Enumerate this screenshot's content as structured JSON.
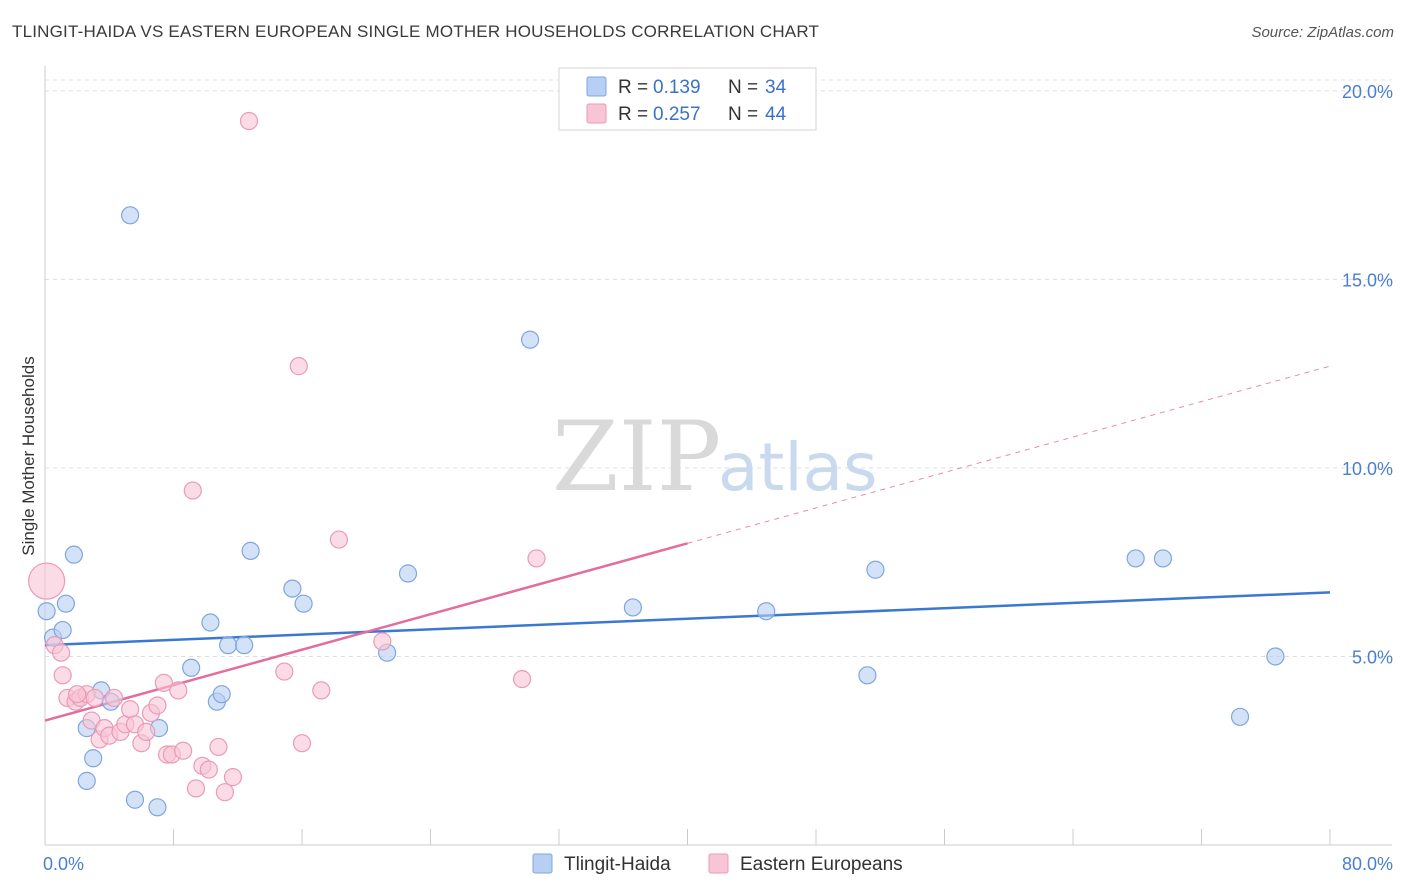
{
  "header": {
    "title": "TLINGIT-HAIDA VS EASTERN EUROPEAN SINGLE MOTHER HOUSEHOLDS CORRELATION CHART",
    "source": "Source: ZipAtlas.com"
  },
  "watermark": {
    "zip": "ZIP",
    "atlas": "atlas"
  },
  "legend": {
    "r_label": "R =",
    "n_label": "N =",
    "rows": [
      {
        "r": "0.139",
        "n": "34"
      },
      {
        "r": "0.257",
        "n": "44"
      }
    ]
  },
  "chart_data": {
    "type": "scatter",
    "title": "TLINGIT-HAIDA VS EASTERN EUROPEAN SINGLE MOTHER HOUSEHOLDS CORRELATION CHART",
    "xlabel": "",
    "ylabel": "Single Mother Households",
    "xlim": [
      0,
      80
    ],
    "ylim": [
      0,
      20.5
    ],
    "x_tick_labels": [
      "0.0%",
      "80.0%"
    ],
    "y_ticks": [
      5,
      10,
      15,
      20
    ],
    "y_tick_labels": [
      "5.0%",
      "10.0%",
      "15.0%",
      "20.0%"
    ],
    "grid": true,
    "colors": {
      "blue": "#3a78d4",
      "blue_fill": "#b7cff2",
      "pink": "#e36d9c",
      "pink_fill": "#f8c5d6"
    },
    "series": [
      {
        "name": "Tlingit-Haida",
        "r": 0.139,
        "n": 34,
        "trend": {
          "x0": 0,
          "y0": 5.3,
          "x1": 80,
          "y1": 6.7,
          "dash_from": null
        },
        "points": [
          [
            0.1,
            6.2
          ],
          [
            0.5,
            5.5
          ],
          [
            1.1,
            5.7
          ],
          [
            1.3,
            6.4
          ],
          [
            1.8,
            7.7
          ],
          [
            2.6,
            1.7
          ],
          [
            2.6,
            3.1
          ],
          [
            3.0,
            2.3
          ],
          [
            3.5,
            4.1
          ],
          [
            4.1,
            3.8
          ],
          [
            5.3,
            16.7
          ],
          [
            5.6,
            1.2
          ],
          [
            7.0,
            1.0
          ],
          [
            7.1,
            3.1
          ],
          [
            9.1,
            4.7
          ],
          [
            10.3,
            5.9
          ],
          [
            10.7,
            3.8
          ],
          [
            11.0,
            4.0
          ],
          [
            11.4,
            5.3
          ],
          [
            12.4,
            5.3
          ],
          [
            12.8,
            7.8
          ],
          [
            15.4,
            6.8
          ],
          [
            16.1,
            6.4
          ],
          [
            21.3,
            5.1
          ],
          [
            22.6,
            7.2
          ],
          [
            30.2,
            13.4
          ],
          [
            36.6,
            6.3
          ],
          [
            44.9,
            6.2
          ],
          [
            51.2,
            4.5
          ],
          [
            51.7,
            7.3
          ],
          [
            67.9,
            7.6
          ],
          [
            69.6,
            7.6
          ],
          [
            74.4,
            3.4
          ],
          [
            76.6,
            5.0
          ]
        ]
      },
      {
        "name": "Eastern Europeans",
        "r": 0.257,
        "n": 44,
        "trend": {
          "x0": 0,
          "y0": 3.3,
          "x1": 80,
          "y1": 12.7,
          "dash_from": 40
        },
        "points": [
          [
            0.1,
            7.0
          ],
          [
            0.6,
            5.3
          ],
          [
            1.1,
            4.5
          ],
          [
            1.4,
            3.9
          ],
          [
            1.9,
            3.8
          ],
          [
            2.2,
            3.9
          ],
          [
            2.6,
            4.0
          ],
          [
            2.9,
            3.3
          ],
          [
            3.1,
            3.9
          ],
          [
            3.4,
            2.8
          ],
          [
            3.7,
            3.1
          ],
          [
            4.0,
            2.9
          ],
          [
            4.3,
            3.9
          ],
          [
            4.7,
            3.0
          ],
          [
            5.0,
            3.2
          ],
          [
            5.3,
            3.6
          ],
          [
            5.6,
            3.2
          ],
          [
            6.0,
            2.7
          ],
          [
            6.3,
            3.0
          ],
          [
            6.6,
            3.5
          ],
          [
            7.0,
            3.7
          ],
          [
            7.4,
            4.3
          ],
          [
            7.6,
            2.4
          ],
          [
            7.9,
            2.4
          ],
          [
            8.3,
            4.1
          ],
          [
            8.6,
            2.5
          ],
          [
            9.2,
            9.4
          ],
          [
            9.4,
            1.5
          ],
          [
            9.8,
            2.1
          ],
          [
            10.2,
            2.0
          ],
          [
            10.8,
            2.6
          ],
          [
            11.2,
            1.4
          ],
          [
            11.7,
            1.8
          ],
          [
            12.7,
            19.2
          ],
          [
            14.9,
            4.6
          ],
          [
            16.0,
            2.7
          ],
          [
            15.8,
            12.7
          ],
          [
            17.2,
            4.1
          ],
          [
            18.3,
            8.1
          ],
          [
            21.0,
            5.4
          ],
          [
            29.7,
            4.4
          ],
          [
            30.6,
            7.6
          ],
          [
            1.0,
            5.1
          ],
          [
            2.0,
            4.0
          ]
        ]
      }
    ]
  },
  "bottom_legend": [
    {
      "label": "Tlingit-Haida"
    },
    {
      "label": "Eastern Europeans"
    }
  ]
}
